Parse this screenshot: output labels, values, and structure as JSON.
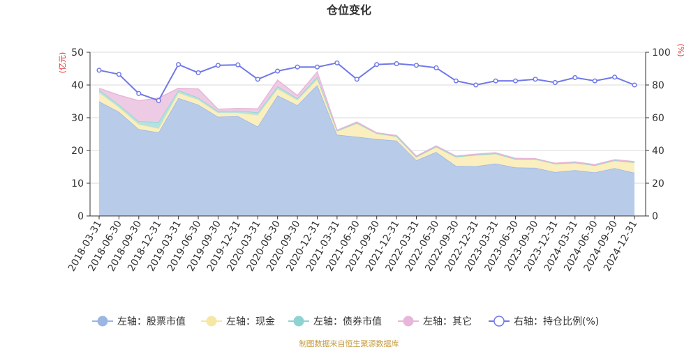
{
  "chart_data": {
    "type": "area",
    "title": "仓位变化",
    "left_axis_label": "(亿元)",
    "right_axis_label": "(%)",
    "left_ylim": [
      0,
      50
    ],
    "left_ticks": [
      0,
      10,
      20,
      30,
      40,
      50
    ],
    "right_ylim": [
      0,
      100
    ],
    "right_ticks": [
      0,
      20,
      40,
      60,
      80,
      100
    ],
    "categories": [
      "2018-03-31",
      "2018-06-30",
      "2018-09-30",
      "2018-12-31",
      "2019-03-31",
      "2019-06-30",
      "2019-09-30",
      "2019-12-31",
      "2020-03-31",
      "2020-06-30",
      "2020-09-30",
      "2020-12-31",
      "2021-03-31",
      "2021-06-30",
      "2021-09-30",
      "2021-12-31",
      "2022-03-31",
      "2022-06-30",
      "2022-09-30",
      "2022-12-31",
      "2023-03-31",
      "2023-06-30",
      "2023-09-30",
      "2023-12-31",
      "2024-03-31",
      "2024-06-30",
      "2024-09-30",
      "2024-12-31"
    ],
    "series": [
      {
        "name": "左轴：股票市值",
        "axis": "left",
        "color": "#9bb6e3",
        "fill": "#b8cce9",
        "values": [
          35.0,
          31.8,
          26.5,
          25.5,
          36.0,
          34.0,
          30.3,
          30.5,
          27.3,
          36.8,
          33.8,
          40.0,
          24.8,
          24.2,
          23.5,
          23.0,
          17.0,
          19.5,
          15.3,
          15.2,
          16.0,
          14.8,
          14.7,
          13.4,
          14.0,
          13.3,
          14.6,
          13.2
        ]
      },
      {
        "name": "左轴：现金",
        "axis": "left",
        "color": "#f6e7a3",
        "fill": "#fbefbf",
        "values": [
          2.7,
          1.4,
          1.5,
          1.2,
          1.6,
          1.5,
          1.2,
          1.0,
          3.5,
          2.0,
          1.6,
          1.7,
          1.0,
          4.0,
          1.6,
          1.2,
          0.9,
          1.5,
          2.6,
          3.3,
          2.9,
          2.4,
          2.5,
          2.4,
          2.1,
          2.0,
          2.2,
          3.0
        ]
      },
      {
        "name": "左轴：债券市值",
        "axis": "left",
        "color": "#8dd3d1",
        "fill": "#b5e2df",
        "values": [
          0.8,
          0.8,
          0.9,
          2.0,
          0.8,
          0.6,
          0.5,
          0.7,
          0.8,
          0.8,
          0.5,
          0.8,
          0.3,
          0.2,
          0.2,
          0.2,
          0.2,
          0.2,
          0.2,
          0.2,
          0.2,
          0.2,
          0.2,
          0.2,
          0.2,
          0.2,
          0.2,
          0.2
        ]
      },
      {
        "name": "左轴：其它",
        "axis": "left",
        "color": "#e7b6d9",
        "fill": "#eecbe4",
        "values": [
          0.5,
          2.9,
          6.3,
          7.3,
          0.6,
          2.7,
          0.6,
          0.6,
          1.1,
          1.9,
          0.9,
          1.5,
          0.1,
          0.3,
          0.1,
          0.2,
          0.2,
          0.2,
          0.2,
          0.2,
          0.2,
          0.2,
          0.1,
          0.1,
          0.2,
          0.2,
          0.2,
          0.2
        ]
      },
      {
        "name": "右轴：持仓比例(%)",
        "axis": "right",
        "color": "#6f78e8",
        "type": "line",
        "values": [
          89.0,
          86.5,
          74.8,
          70.5,
          92.5,
          87.5,
          92.0,
          92.3,
          83.5,
          88.5,
          91.0,
          91.0,
          93.5,
          83.5,
          92.5,
          93.0,
          92.0,
          90.5,
          82.5,
          80.0,
          82.5,
          82.5,
          83.5,
          81.5,
          84.5,
          82.5,
          84.8,
          80.0
        ]
      }
    ]
  },
  "footer": "制图数据来自恒生聚源数据库"
}
